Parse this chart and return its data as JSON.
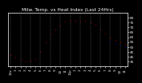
{
  "title": "Milw. Temp. vs Heat Index (Last 24Hrs)",
  "bg_color": "#000000",
  "plot_bg": "#000000",
  "temp_color": "#ff0000",
  "heat_color": "#0000ff",
  "grid_color": "#666666",
  "title_color": "#ffffff",
  "tick_color": "#ffffff",
  "x_hours": [
    0,
    1,
    2,
    3,
    4,
    5,
    6,
    7,
    8,
    9,
    10,
    11,
    12,
    13,
    14,
    15,
    16,
    17,
    18,
    19,
    20,
    21,
    22,
    23
  ],
  "temp_values": [
    42,
    39,
    37,
    35,
    36,
    38,
    45,
    55,
    63,
    68,
    72,
    76,
    77,
    77,
    76,
    77,
    75,
    73,
    68,
    64,
    60,
    57,
    55,
    53
  ],
  "heat_values": [
    null,
    null,
    null,
    null,
    null,
    null,
    null,
    null,
    null,
    null,
    null,
    null,
    null,
    null,
    null,
    null,
    null,
    null,
    null,
    null,
    56,
    54,
    52,
    50
  ],
  "ylim": [
    30,
    85
  ],
  "yticks": [
    35,
    40,
    45,
    50,
    55,
    60,
    65,
    70,
    75,
    80
  ],
  "ylabels": [
    "35",
    "40",
    "45",
    "50",
    "55",
    "60",
    "65",
    "70",
    "75",
    "80"
  ],
  "title_fontsize": 4.2,
  "tick_fontsize": 3.0,
  "x_labels": [
    "12a",
    "1",
    "2",
    "3",
    "4",
    "5",
    "6",
    "7",
    "8",
    "9",
    "10",
    "11",
    "12p",
    "1",
    "2",
    "3",
    "4",
    "5",
    "6",
    "7",
    "8",
    "9",
    "10",
    "11"
  ],
  "grid_positions": [
    0,
    2,
    4,
    6,
    8,
    10,
    12,
    14,
    16,
    18,
    20,
    22
  ]
}
